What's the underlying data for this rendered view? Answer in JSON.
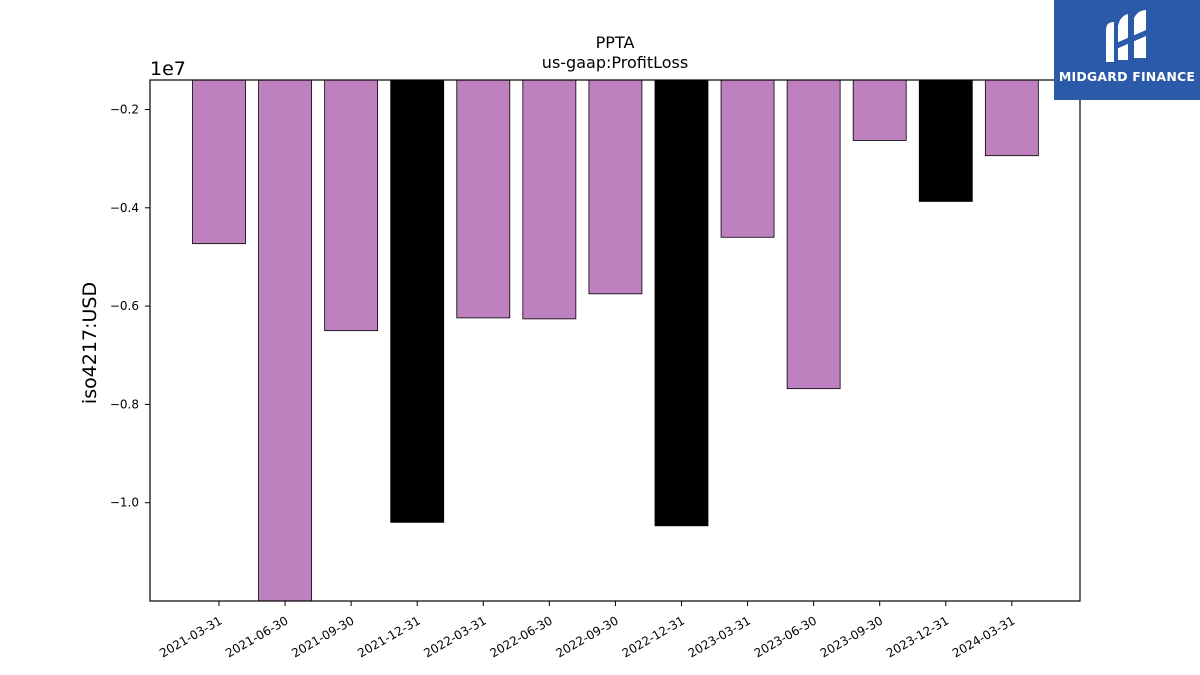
{
  "chart_data": {
    "type": "bar",
    "title": "PPTA",
    "subtitle": "us-gaap:ProfitLoss",
    "xlabel": "",
    "ylabel": "iso4217:USD",
    "offset_label": "1e7",
    "categories": [
      "2021-03-31",
      "2021-06-30",
      "2021-09-30",
      "2021-12-31",
      "2022-03-31",
      "2022-06-30",
      "2022-09-30",
      "2022-12-31",
      "2023-03-31",
      "2023-06-30",
      "2023-09-30",
      "2023-12-31",
      "2024-03-31"
    ],
    "values": [
      -4730000,
      -12000000,
      -6500000,
      -10400000,
      -6240000,
      -6260000,
      -5750000,
      -10470000,
      -4600000,
      -7680000,
      -2630000,
      -3870000,
      -2940000
    ],
    "bar_colors": [
      "#bf80bf",
      "#bf80bf",
      "#bf80bf",
      "#000000",
      "#bf80bf",
      "#bf80bf",
      "#bf80bf",
      "#000000",
      "#bf80bf",
      "#bf80bf",
      "#bf80bf",
      "#000000",
      "#bf80bf"
    ],
    "ylim": [
      -12000000,
      -1400000
    ],
    "yticks": [
      -2000000,
      -4000000,
      -6000000,
      -8000000,
      -10000000
    ],
    "ytick_labels": [
      "−0.2",
      "−0.4",
      "−0.6",
      "−0.8",
      "−1.0"
    ],
    "grid": false,
    "legend": "none"
  },
  "logo": {
    "text": "MIDGARD FINANCE",
    "background": "#2b5aa8"
  }
}
